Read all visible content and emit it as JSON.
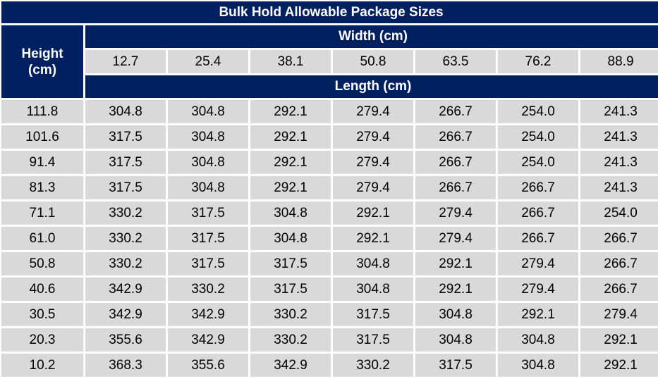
{
  "table": {
    "title": "Bulk Hold Allowable Package Sizes",
    "height_header_line1": "Height",
    "height_header_line2": "(cm)",
    "width_header": "Width (cm)",
    "length_header": "Length (cm)",
    "widths": [
      "12.7",
      "25.4",
      "38.1",
      "50.8",
      "63.5",
      "76.2",
      "88.9"
    ],
    "rows": [
      {
        "height": "111.8",
        "values": [
          "304.8",
          "304.8",
          "292.1",
          "279.4",
          "266.7",
          "254.0",
          "241.3"
        ]
      },
      {
        "height": "101.6",
        "values": [
          "317.5",
          "304.8",
          "292.1",
          "279.4",
          "266.7",
          "254.0",
          "241.3"
        ]
      },
      {
        "height": "91.4",
        "values": [
          "317.5",
          "304.8",
          "292.1",
          "279.4",
          "266.7",
          "254.0",
          "241.3"
        ]
      },
      {
        "height": "81.3",
        "values": [
          "317.5",
          "304.8",
          "292.1",
          "279.4",
          "266.7",
          "266.7",
          "241.3"
        ]
      },
      {
        "height": "71.1",
        "values": [
          "330.2",
          "317.5",
          "304.8",
          "292.1",
          "279.4",
          "266.7",
          "254.0"
        ]
      },
      {
        "height": "61.0",
        "values": [
          "330.2",
          "317.5",
          "304.8",
          "292.1",
          "279.4",
          "266.7",
          "266.7"
        ]
      },
      {
        "height": "50.8",
        "values": [
          "330.2",
          "317.5",
          "317.5",
          "304.8",
          "292.1",
          "279.4",
          "266.7"
        ]
      },
      {
        "height": "40.6",
        "values": [
          "342.9",
          "330.2",
          "317.5",
          "304.8",
          "292.1",
          "279.4",
          "266.7"
        ]
      },
      {
        "height": "30.5",
        "values": [
          "342.9",
          "342.9",
          "330.2",
          "317.5",
          "304.8",
          "292.1",
          "279.4"
        ]
      },
      {
        "height": "20.3",
        "values": [
          "355.6",
          "342.9",
          "330.2",
          "317.5",
          "304.8",
          "304.8",
          "292.1"
        ]
      },
      {
        "height": "10.2",
        "values": [
          "368.3",
          "355.6",
          "342.9",
          "330.2",
          "317.5",
          "304.8",
          "292.1"
        ]
      }
    ]
  },
  "colors": {
    "header_bg": "#002060",
    "header_text": "#ffffff",
    "cell_bg": "#d9d9d9"
  }
}
